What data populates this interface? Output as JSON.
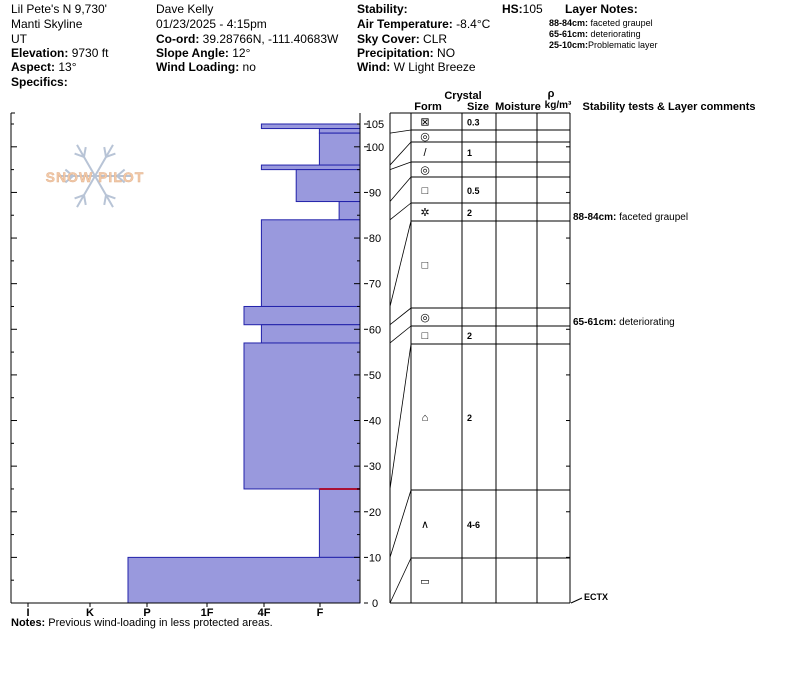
{
  "header": {
    "col1": [
      "Lil Pete's N 9,730'",
      "Manti Skyline",
      "UT"
    ],
    "elevation_label": "Elevation:",
    "elevation": "9730 ft",
    "aspect_label": "Aspect:",
    "aspect": "13°",
    "specifics_label": "Specifics:",
    "observer": "Dave Kelly",
    "datetime": "01/23/2025 - 4:15pm",
    "coord_label": "Co-ord:",
    "coord": "39.28766N, -111.40683W",
    "slope_label": "Slope Angle:",
    "slope": "12°",
    "wind_loading_label": "Wind Loading:",
    "wind_loading": "no",
    "stability_label": "Stability:",
    "air_temp_label": "Air Temperature:",
    "air_temp": "-8.4°C",
    "sky_label": "Sky Cover:",
    "sky": "CLR",
    "precip_label": "Precipitation:",
    "precip": "NO",
    "wind_label": "Wind:",
    "wind": "W Light Breeze",
    "hs_label": "HS:",
    "hs": "105",
    "layer_notes_label": "Layer Notes:",
    "layer_notes": [
      {
        "range": "88-84cm:",
        "text": "faceted graupel"
      },
      {
        "range": "65-61cm:",
        "text": "deteriorating"
      },
      {
        "range": "25-10cm:",
        "text": "Problematic layer"
      }
    ]
  },
  "logo": {
    "text": "SNOW PILOT"
  },
  "table_headers": {
    "crystal": "Crystal",
    "form": "Form",
    "size": "Size",
    "moisture": "Moisture",
    "rho": "ρ",
    "density_unit": "kg/m³",
    "stability": "Stability tests & Layer comments"
  },
  "notes": {
    "label": "Notes:",
    "text": "Previous wind-loading in less protected areas."
  },
  "chart_data": {
    "type": "bar",
    "description_kind": "snow profile hand hardness",
    "hardness_axis_labels": [
      "I",
      "K",
      "P",
      "1F",
      "4F",
      "F"
    ],
    "depth_ticks": [
      0,
      10,
      20,
      30,
      40,
      50,
      60,
      70,
      80,
      90,
      100,
      105
    ],
    "ylim": [
      0,
      105
    ],
    "layers": [
      {
        "top": 105,
        "bottom": 104,
        "hardness": "4F"
      },
      {
        "top": 104,
        "bottom": 103,
        "hardness": "F"
      },
      {
        "top": 103,
        "bottom": 96,
        "hardness": "F"
      },
      {
        "top": 96,
        "bottom": 95,
        "hardness": "4F"
      },
      {
        "top": 95,
        "bottom": 88,
        "hardness": "F"
      },
      {
        "top": 88,
        "bottom": 84,
        "hardness": "F"
      },
      {
        "top": 84,
        "bottom": 65,
        "hardness": "4F"
      },
      {
        "top": 65,
        "bottom": 61,
        "hardness": "4F"
      },
      {
        "top": 61,
        "bottom": 57,
        "hardness": "4F"
      },
      {
        "top": 57,
        "bottom": 25,
        "hardness": "4F"
      },
      {
        "top": 25,
        "bottom": 10,
        "hardness": "F"
      },
      {
        "top": 10,
        "bottom": 0,
        "hardness": "P"
      }
    ],
    "hardness_values": [
      0.85,
      0.35,
      0.35,
      0.85,
      0.55,
      0.18,
      0.85,
      1.0,
      0.85,
      1.0,
      0.35,
      2.0
    ],
    "problem_line_depth": 25,
    "table_rows": [
      {
        "top": 105,
        "bottom": 103,
        "form": "⊠",
        "size": "0.3"
      },
      {
        "top": 103,
        "bottom": 96,
        "form": "◎",
        "size": ""
      },
      {
        "top": 96,
        "bottom": 95,
        "form": "/",
        "size": "1"
      },
      {
        "top": 95,
        "bottom": 88,
        "form": "◎",
        "size": ""
      },
      {
        "top": 88,
        "bottom": 84,
        "form": "□",
        "size": "0.5"
      },
      {
        "top": 84,
        "bottom": 65,
        "form": "✲",
        "size": "2"
      },
      {
        "top": 65,
        "bottom": 61,
        "form": "□",
        "size": ""
      },
      {
        "top": 61,
        "bottom": 57,
        "form": "◎",
        "size": ""
      },
      {
        "top": 57,
        "bottom": 25,
        "form": "□",
        "size": "2"
      },
      {
        "top": 25,
        "bottom": 10,
        "form": "⌂",
        "size": "2"
      },
      {
        "top": 10,
        "bottom": 0,
        "form": "∧",
        "size": "4-6"
      }
    ],
    "extra_row": {
      "form": "▭"
    },
    "comments": [
      {
        "depth": 88,
        "range": "88-84cm:",
        "text": "faceted graupel"
      },
      {
        "depth": 65,
        "range": "65-61cm:",
        "text": "deteriorating"
      }
    ],
    "stability_test": {
      "depth": 0,
      "text": "ECTX"
    }
  }
}
